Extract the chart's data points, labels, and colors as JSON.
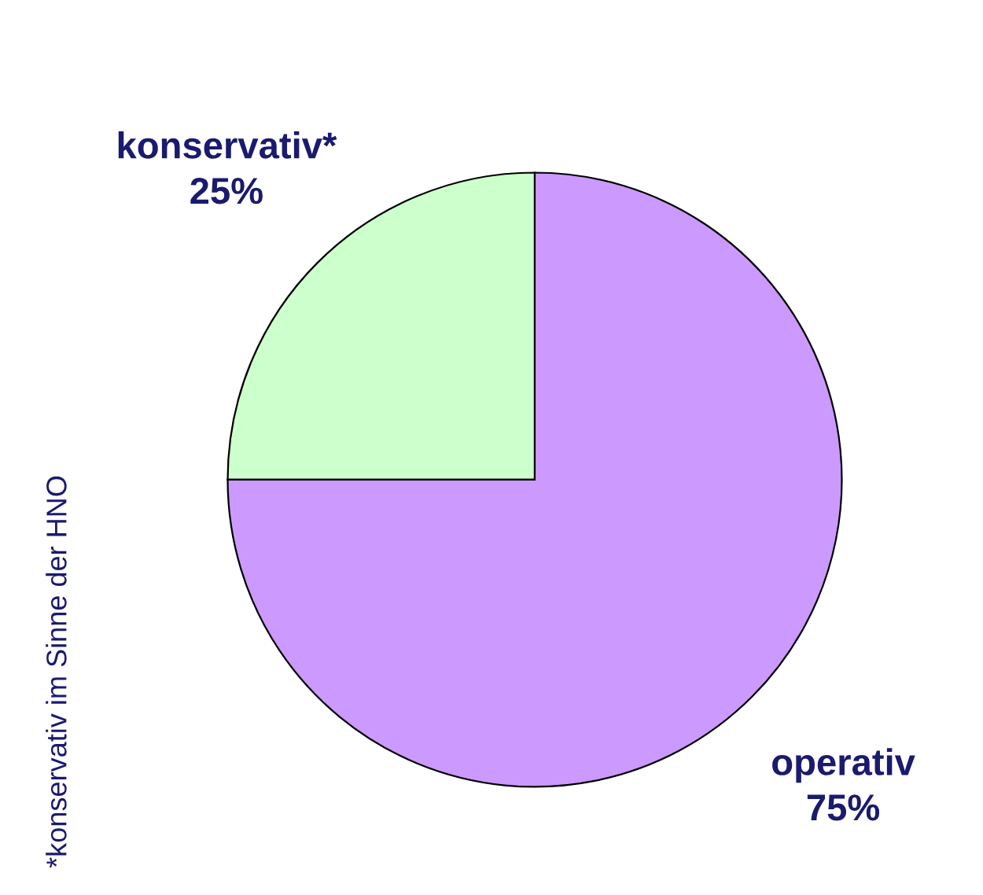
{
  "chart_data": {
    "type": "pie",
    "categories": [
      "konservativ*",
      "operativ"
    ],
    "values": [
      25,
      75
    ],
    "colors": [
      "#ccffcc",
      "#cc99ff"
    ],
    "value_labels": [
      "25%",
      "75%"
    ],
    "annotations": [
      "*konservativ im Sinne der HNO"
    ]
  }
}
